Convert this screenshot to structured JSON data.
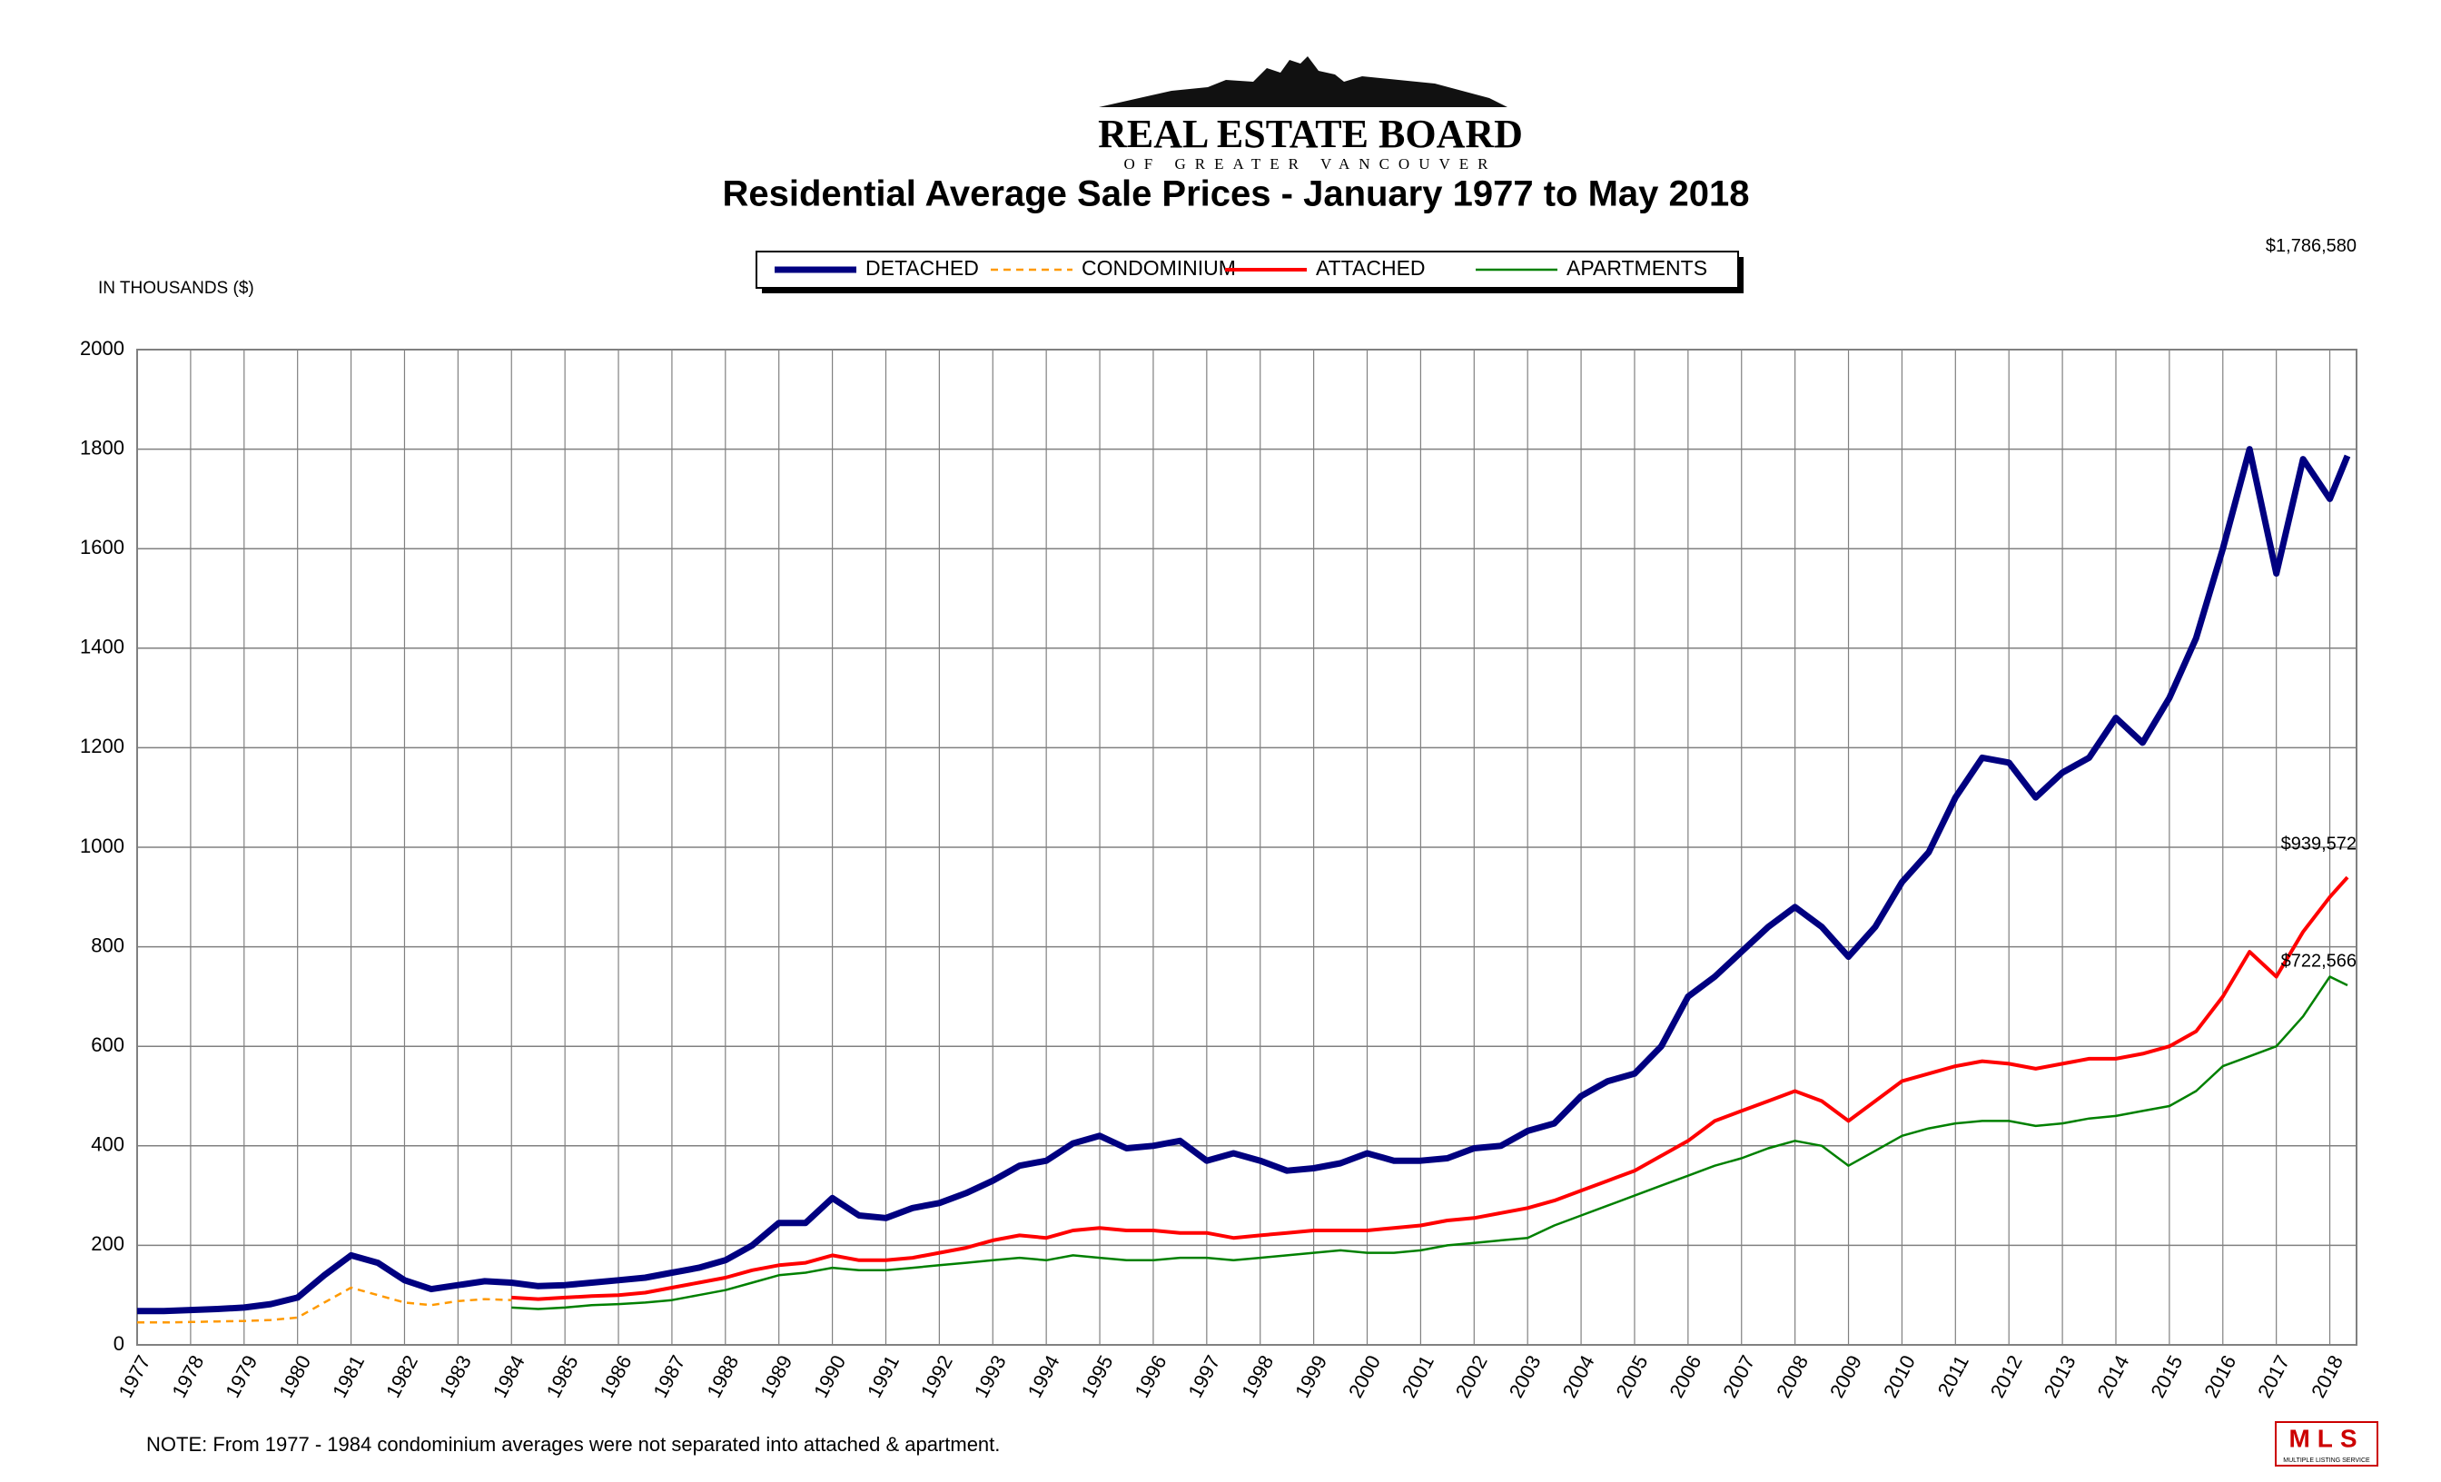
{
  "logo": {
    "name": "REAL ESTATE BOARD",
    "subtitle": "OF GREATER VANCOUVER",
    "mls": "MLS",
    "mls_sub": "MULTIPLE LISTING SERVICE"
  },
  "chart_data": {
    "type": "line",
    "title": "Residential Average Sale Prices  -  January 1977 to May 2018",
    "y_axis_label": "IN THOUSANDS ($)",
    "note": "NOTE:  From 1977 - 1984 condominium averages were not separated into attached & apartment.",
    "xlim": [
      1977,
      2018.5
    ],
    "xticks": [
      1977,
      1978,
      1979,
      1980,
      1981,
      1982,
      1983,
      1984,
      1985,
      1986,
      1987,
      1988,
      1989,
      1990,
      1991,
      1992,
      1993,
      1994,
      1995,
      1996,
      1997,
      1998,
      1999,
      2000,
      2001,
      2002,
      2003,
      2004,
      2005,
      2006,
      2007,
      2008,
      2009,
      2010,
      2011,
      2012,
      2013,
      2014,
      2015,
      2016,
      2017,
      2018
    ],
    "ylim": [
      0,
      2000
    ],
    "yticks": [
      0,
      200,
      400,
      600,
      800,
      1000,
      1200,
      1400,
      1600,
      1800,
      2000
    ],
    "grid": true,
    "x": [
      1977,
      1977.5,
      1978,
      1978.5,
      1979,
      1979.5,
      1980,
      1980.5,
      1981,
      1981.5,
      1982,
      1982.5,
      1983,
      1983.5,
      1984,
      1984.5,
      1985,
      1985.5,
      1986,
      1986.5,
      1987,
      1987.5,
      1988,
      1988.5,
      1989,
      1989.5,
      1990,
      1990.5,
      1991,
      1991.5,
      1992,
      1992.5,
      1993,
      1993.5,
      1994,
      1994.5,
      1995,
      1995.5,
      1996,
      1996.5,
      1997,
      1997.5,
      1998,
      1998.5,
      1999,
      1999.5,
      2000,
      2000.5,
      2001,
      2001.5,
      2002,
      2002.5,
      2003,
      2003.5,
      2004,
      2004.5,
      2005,
      2005.5,
      2006,
      2006.5,
      2007,
      2007.5,
      2008,
      2008.5,
      2009,
      2009.5,
      2010,
      2010.5,
      2011,
      2011.5,
      2012,
      2012.5,
      2013,
      2013.5,
      2014,
      2014.5,
      2015,
      2015.5,
      2016,
      2016.5,
      2017,
      2017.5,
      2018,
      2018.33
    ],
    "series": [
      {
        "name": "DETACHED",
        "color": "#000080",
        "width": 7,
        "dash": false,
        "values": [
          68,
          68,
          70,
          72,
          75,
          82,
          95,
          140,
          180,
          165,
          130,
          112,
          120,
          128,
          125,
          118,
          120,
          125,
          130,
          135,
          145,
          155,
          170,
          200,
          245,
          245,
          295,
          260,
          255,
          275,
          285,
          305,
          330,
          360,
          370,
          405,
          420,
          395,
          400,
          410,
          370,
          385,
          370,
          350,
          355,
          365,
          385,
          370,
          370,
          375,
          395,
          400,
          430,
          445,
          500,
          530,
          545,
          600,
          700,
          740,
          790,
          840,
          880,
          840,
          780,
          840,
          930,
          990,
          1100,
          1180,
          1170,
          1100,
          1150,
          1180,
          1260,
          1210,
          1300,
          1420,
          1600,
          1800,
          1550,
          1780,
          1700,
          1786.58
        ]
      },
      {
        "name": "CONDOMINIUM",
        "color": "#ff9900",
        "width": 2.5,
        "dash": true,
        "values": [
          45,
          45,
          46,
          47,
          48,
          50,
          55,
          85,
          115,
          100,
          85,
          80,
          88,
          92,
          90,
          null,
          null,
          null,
          null,
          null,
          null,
          null,
          null,
          null,
          null,
          null,
          null,
          null,
          null,
          null,
          null,
          null,
          null,
          null,
          null,
          null,
          null,
          null,
          null,
          null,
          null,
          null,
          null,
          null,
          null,
          null,
          null,
          null,
          null,
          null,
          null,
          null,
          null,
          null,
          null,
          null,
          null,
          null,
          null,
          null,
          null,
          null,
          null,
          null,
          null,
          null,
          null,
          null,
          null,
          null,
          null,
          null,
          null,
          null,
          null,
          null,
          null,
          null,
          null,
          null,
          null,
          null,
          null,
          null
        ]
      },
      {
        "name": "ATTACHED",
        "color": "#ff0000",
        "width": 4,
        "dash": false,
        "values": [
          null,
          null,
          null,
          null,
          null,
          null,
          null,
          null,
          null,
          null,
          null,
          null,
          null,
          null,
          95,
          92,
          95,
          98,
          100,
          105,
          115,
          125,
          135,
          150,
          160,
          165,
          180,
          170,
          170,
          175,
          185,
          195,
          210,
          220,
          215,
          230,
          235,
          230,
          230,
          225,
          225,
          215,
          220,
          225,
          230,
          230,
          230,
          235,
          240,
          250,
          255,
          265,
          275,
          290,
          310,
          330,
          350,
          380,
          410,
          450,
          470,
          490,
          510,
          490,
          450,
          490,
          530,
          545,
          560,
          570,
          565,
          555,
          565,
          575,
          575,
          585,
          600,
          630,
          700,
          790,
          740,
          830,
          900,
          939.572
        ]
      },
      {
        "name": "APARTMENTS",
        "color": "#008000",
        "width": 2.5,
        "dash": false,
        "values": [
          null,
          null,
          null,
          null,
          null,
          null,
          null,
          null,
          null,
          null,
          null,
          null,
          null,
          null,
          75,
          72,
          75,
          80,
          82,
          85,
          90,
          100,
          110,
          125,
          140,
          145,
          155,
          150,
          150,
          155,
          160,
          165,
          170,
          175,
          170,
          180,
          175,
          170,
          170,
          175,
          175,
          170,
          175,
          180,
          185,
          190,
          185,
          185,
          190,
          200,
          205,
          210,
          215,
          240,
          260,
          280,
          300,
          320,
          340,
          360,
          375,
          395,
          410,
          400,
          360,
          390,
          420,
          435,
          445,
          450,
          450,
          440,
          445,
          455,
          460,
          470,
          480,
          510,
          560,
          580,
          600,
          660,
          740,
          722.566
        ]
      }
    ],
    "annotations": [
      {
        "series": 0,
        "text": "$1,786,580"
      },
      {
        "series": 2,
        "text": "$939,572"
      },
      {
        "series": 3,
        "text": "$722,566"
      }
    ]
  }
}
